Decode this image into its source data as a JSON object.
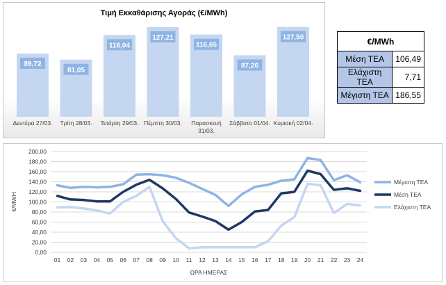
{
  "chart_data": [
    {
      "type": "bar",
      "title": "Τιμή Εκκαθάρισης Αγοράς (€/MWh)",
      "categories": [
        [
          "Δευτέρα 27/03."
        ],
        [
          "Τρίτη 28/03."
        ],
        [
          "Τετάρτη 29/03."
        ],
        [
          "Πέμπτη 30/03."
        ],
        [
          "Παρασκευή",
          "31/03."
        ],
        [
          "Σάββατο 01/04."
        ],
        [
          "Κυριακή 02/04."
        ]
      ],
      "values": [
        89.72,
        81.05,
        116.04,
        127.21,
        116.65,
        87.26,
        127.5
      ],
      "value_labels": [
        "89,72",
        "81,05",
        "116,04",
        "127,21",
        "116,65",
        "87,26",
        "127,50"
      ],
      "ylim": [
        0,
        140
      ],
      "colors": {
        "bar": "#c5d6f0",
        "label_box": "#8eb4e3",
        "label_text": "#ffffff"
      }
    },
    {
      "type": "line",
      "xlabel": "ΩΡΑ ΗΜΕΡΑΣ",
      "ylabel": "€/MWH",
      "ylim": [
        0,
        200
      ],
      "yticks": [
        "0,00",
        "20,00",
        "40,00",
        "60,00",
        "80,00",
        "100,00",
        "120,00",
        "140,00",
        "160,00",
        "180,00",
        "200,00"
      ],
      "x": [
        "01",
        "02",
        "03",
        "04",
        "05",
        "06",
        "07",
        "08",
        "09",
        "10",
        "11",
        "12",
        "13",
        "14",
        "15",
        "16",
        "17",
        "18",
        "19",
        "20",
        "21",
        "22",
        "23",
        "24"
      ],
      "grid": true,
      "legend": "right",
      "series": [
        {
          "name": "Μέγιστη ΤΕΑ",
          "color": "#8eb4e3",
          "values": [
            133,
            128,
            130,
            129,
            130,
            135,
            154,
            155,
            153,
            148,
            138,
            126,
            114,
            92,
            115,
            130,
            134,
            142,
            145,
            187,
            183,
            143,
            153,
            139
          ]
        },
        {
          "name": "Μέση ΤΕΑ",
          "color": "#1f3864",
          "values": [
            112,
            105,
            104,
            101,
            101,
            120,
            134,
            144,
            127,
            106,
            79,
            71,
            62,
            45,
            60,
            81,
            84,
            117,
            120,
            162,
            155,
            124,
            127,
            122
          ]
        },
        {
          "name": "Ελάχιστη ΤΕΑ",
          "color": "#c5d6f0",
          "values": [
            89,
            90,
            87,
            83,
            77,
            100,
            112,
            130,
            62,
            28,
            8,
            10,
            10,
            10,
            10,
            10,
            22,
            53,
            70,
            136,
            133,
            78,
            96,
            93
          ]
        }
      ]
    }
  ],
  "table": {
    "header": "€/MWh",
    "rows": [
      {
        "label": "Μέση ΤΕΑ",
        "value": "106,49"
      },
      {
        "label": "Ελάχιστη ΤΕΑ",
        "value": "7,71"
      },
      {
        "label": "Μέγιστη ΤΕΑ",
        "value": "186,55"
      }
    ]
  }
}
